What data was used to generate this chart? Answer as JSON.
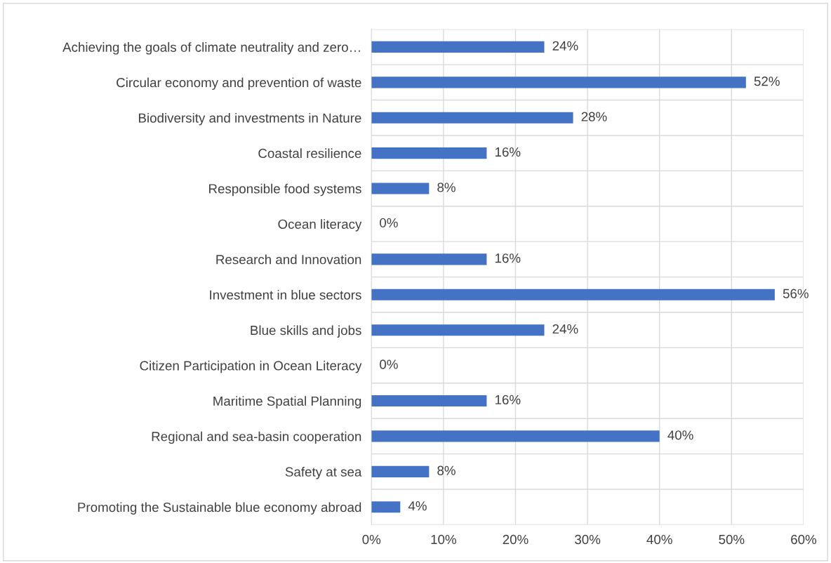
{
  "chart_data": {
    "type": "bar",
    "orientation": "horizontal",
    "categories": [
      "Achieving the goals of climate neutrality and zero…",
      "Circular economy and prevention of waste",
      "Biodiversity and investments in Nature",
      "Coastal resilience",
      "Responsible food systems",
      "Ocean literacy",
      "Research and Innovation",
      "Investment in blue sectors",
      "Blue skills and jobs",
      "Citizen Participation in Ocean Literacy",
      "Maritime Spatial Planning",
      "Regional and sea-basin cooperation",
      "Safety at sea",
      "Promoting the Sustainable blue economy abroad"
    ],
    "values": [
      24,
      52,
      28,
      16,
      8,
      0,
      16,
      56,
      24,
      0,
      16,
      40,
      8,
      4
    ],
    "value_labels": [
      "24%",
      "52%",
      "28%",
      "16%",
      "8%",
      "0%",
      "16%",
      "56%",
      "24%",
      "0%",
      "16%",
      "40%",
      "8%",
      "4%"
    ],
    "color": "#4472c4",
    "xlim": [
      0,
      60
    ],
    "xticks": [
      {
        "value": 0,
        "label": "0%"
      },
      {
        "value": 10,
        "label": "10%"
      },
      {
        "value": 20,
        "label": "20%"
      },
      {
        "value": 30,
        "label": "30%"
      },
      {
        "value": 40,
        "label": "40%"
      },
      {
        "value": 50,
        "label": "50%"
      },
      {
        "value": 60,
        "label": "60%"
      }
    ],
    "grid": true
  }
}
